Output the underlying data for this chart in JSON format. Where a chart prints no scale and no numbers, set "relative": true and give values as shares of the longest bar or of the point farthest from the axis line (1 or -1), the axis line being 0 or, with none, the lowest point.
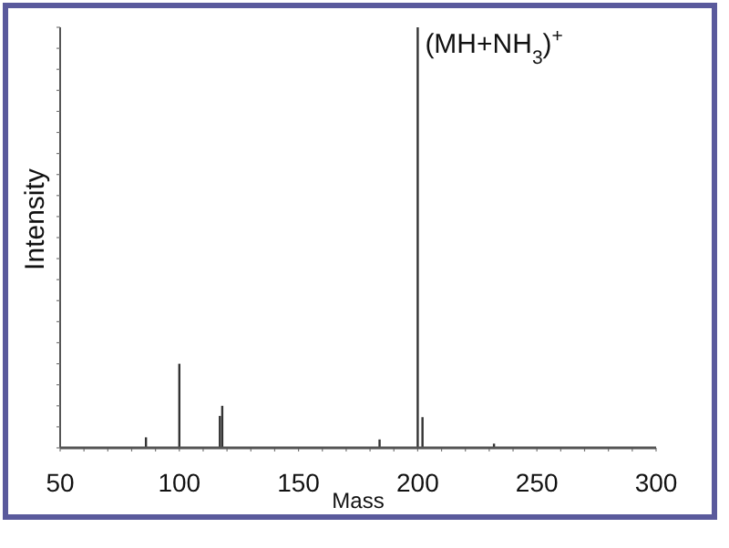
{
  "chart_data": {
    "type": "bar",
    "relative": true,
    "xlabel": "Mass",
    "ylabel": "Intensity",
    "color": "#333333",
    "x": [
      86,
      100,
      117,
      118,
      184,
      200,
      202,
      232
    ],
    "values": [
      0.025,
      0.2,
      0.076,
      0.1,
      0.02,
      1,
      0.073,
      0.01
    ],
    "xlim": [
      50,
      300
    ],
    "xticks": [
      50,
      100,
      150,
      200,
      250,
      300
    ],
    "annotations": [
      {
        "text": "(MH+NH$_{3}$)$^{+}$",
        "x": 200,
        "y": 1
      }
    ]
  }
}
